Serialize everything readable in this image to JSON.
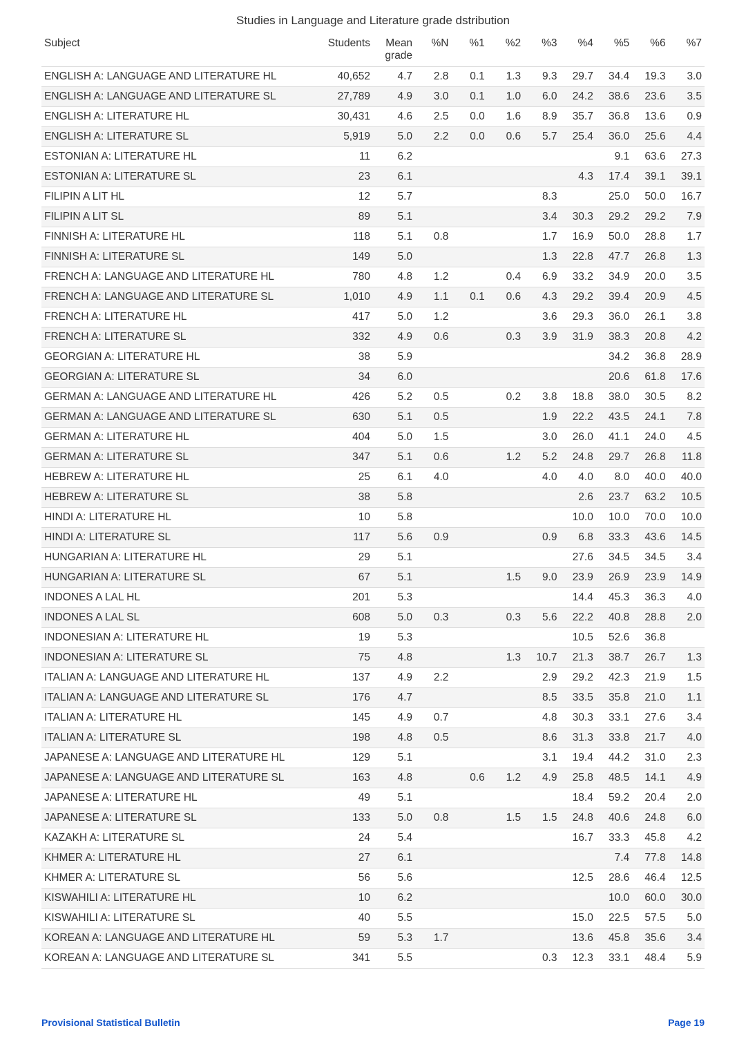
{
  "title": "Studies in Language and Literature grade dstribution",
  "columns": [
    "Subject",
    "Students",
    "Mean grade",
    "%N",
    "%1",
    "%2",
    "%3",
    "%4",
    "%5",
    "%6",
    "%7"
  ],
  "header_bg": "#ffffff",
  "row_alt_bg": "#f4f4f4",
  "border_color": "#dadada",
  "text_color": "#333333",
  "font_size_pt": 11.5,
  "footer": {
    "left": "Provisional Statistical Bulletin",
    "right": "Page 19",
    "color": "#1155cc"
  },
  "rows": [
    {
      "subject": "ENGLISH A: LANGUAGE AND LITERATURE HL",
      "students": "40,652",
      "mean": "4.7",
      "pN": "2.8",
      "p1": "0.1",
      "p2": "1.3",
      "p3": "9.3",
      "p4": "29.7",
      "p5": "34.4",
      "p6": "19.3",
      "p7": "3.0"
    },
    {
      "subject": "ENGLISH A: LANGUAGE AND LITERATURE SL",
      "students": "27,789",
      "mean": "4.9",
      "pN": "3.0",
      "p1": "0.1",
      "p2": "1.0",
      "p3": "6.0",
      "p4": "24.2",
      "p5": "38.6",
      "p6": "23.6",
      "p7": "3.5"
    },
    {
      "subject": "ENGLISH A: LITERATURE HL",
      "students": "30,431",
      "mean": "4.6",
      "pN": "2.5",
      "p1": "0.0",
      "p2": "1.6",
      "p3": "8.9",
      "p4": "35.7",
      "p5": "36.8",
      "p6": "13.6",
      "p7": "0.9"
    },
    {
      "subject": "ENGLISH A: LITERATURE SL",
      "students": "5,919",
      "mean": "5.0",
      "pN": "2.2",
      "p1": "0.0",
      "p2": "0.6",
      "p3": "5.7",
      "p4": "25.4",
      "p5": "36.0",
      "p6": "25.6",
      "p7": "4.4"
    },
    {
      "subject": "ESTONIAN A: LITERATURE HL",
      "students": "11",
      "mean": "6.2",
      "pN": "",
      "p1": "",
      "p2": "",
      "p3": "",
      "p4": "",
      "p5": "9.1",
      "p6": "63.6",
      "p7": "27.3"
    },
    {
      "subject": "ESTONIAN A: LITERATURE SL",
      "students": "23",
      "mean": "6.1",
      "pN": "",
      "p1": "",
      "p2": "",
      "p3": "",
      "p4": "4.3",
      "p5": "17.4",
      "p6": "39.1",
      "p7": "39.1"
    },
    {
      "subject": "FILIPIN A LIT HL",
      "students": "12",
      "mean": "5.7",
      "pN": "",
      "p1": "",
      "p2": "",
      "p3": "8.3",
      "p4": "",
      "p5": "25.0",
      "p6": "50.0",
      "p7": "16.7"
    },
    {
      "subject": "FILIPIN A LIT SL",
      "students": "89",
      "mean": "5.1",
      "pN": "",
      "p1": "",
      "p2": "",
      "p3": "3.4",
      "p4": "30.3",
      "p5": "29.2",
      "p6": "29.2",
      "p7": "7.9"
    },
    {
      "subject": "FINNISH A: LITERATURE HL",
      "students": "118",
      "mean": "5.1",
      "pN": "0.8",
      "p1": "",
      "p2": "",
      "p3": "1.7",
      "p4": "16.9",
      "p5": "50.0",
      "p6": "28.8",
      "p7": "1.7"
    },
    {
      "subject": "FINNISH A: LITERATURE SL",
      "students": "149",
      "mean": "5.0",
      "pN": "",
      "p1": "",
      "p2": "",
      "p3": "1.3",
      "p4": "22.8",
      "p5": "47.7",
      "p6": "26.8",
      "p7": "1.3"
    },
    {
      "subject": "FRENCH A: LANGUAGE AND LITERATURE HL",
      "students": "780",
      "mean": "4.8",
      "pN": "1.2",
      "p1": "",
      "p2": "0.4",
      "p3": "6.9",
      "p4": "33.2",
      "p5": "34.9",
      "p6": "20.0",
      "p7": "3.5"
    },
    {
      "subject": "FRENCH A: LANGUAGE AND LITERATURE SL",
      "students": "1,010",
      "mean": "4.9",
      "pN": "1.1",
      "p1": "0.1",
      "p2": "0.6",
      "p3": "4.3",
      "p4": "29.2",
      "p5": "39.4",
      "p6": "20.9",
      "p7": "4.5"
    },
    {
      "subject": "FRENCH A: LITERATURE HL",
      "students": "417",
      "mean": "5.0",
      "pN": "1.2",
      "p1": "",
      "p2": "",
      "p3": "3.6",
      "p4": "29.3",
      "p5": "36.0",
      "p6": "26.1",
      "p7": "3.8"
    },
    {
      "subject": "FRENCH A: LITERATURE SL",
      "students": "332",
      "mean": "4.9",
      "pN": "0.6",
      "p1": "",
      "p2": "0.3",
      "p3": "3.9",
      "p4": "31.9",
      "p5": "38.3",
      "p6": "20.8",
      "p7": "4.2"
    },
    {
      "subject": "GEORGIAN A: LITERATURE HL",
      "students": "38",
      "mean": "5.9",
      "pN": "",
      "p1": "",
      "p2": "",
      "p3": "",
      "p4": "",
      "p5": "34.2",
      "p6": "36.8",
      "p7": "28.9"
    },
    {
      "subject": "GEORGIAN A: LITERATURE SL",
      "students": "34",
      "mean": "6.0",
      "pN": "",
      "p1": "",
      "p2": "",
      "p3": "",
      "p4": "",
      "p5": "20.6",
      "p6": "61.8",
      "p7": "17.6"
    },
    {
      "subject": "GERMAN A: LANGUAGE AND LITERATURE HL",
      "students": "426",
      "mean": "5.2",
      "pN": "0.5",
      "p1": "",
      "p2": "0.2",
      "p3": "3.8",
      "p4": "18.8",
      "p5": "38.0",
      "p6": "30.5",
      "p7": "8.2"
    },
    {
      "subject": "GERMAN A: LANGUAGE AND LITERATURE SL",
      "students": "630",
      "mean": "5.1",
      "pN": "0.5",
      "p1": "",
      "p2": "",
      "p3": "1.9",
      "p4": "22.2",
      "p5": "43.5",
      "p6": "24.1",
      "p7": "7.8"
    },
    {
      "subject": "GERMAN A: LITERATURE HL",
      "students": "404",
      "mean": "5.0",
      "pN": "1.5",
      "p1": "",
      "p2": "",
      "p3": "3.0",
      "p4": "26.0",
      "p5": "41.1",
      "p6": "24.0",
      "p7": "4.5"
    },
    {
      "subject": "GERMAN A: LITERATURE SL",
      "students": "347",
      "mean": "5.1",
      "pN": "0.6",
      "p1": "",
      "p2": "1.2",
      "p3": "5.2",
      "p4": "24.8",
      "p5": "29.7",
      "p6": "26.8",
      "p7": "11.8"
    },
    {
      "subject": "HEBREW A: LITERATURE HL",
      "students": "25",
      "mean": "6.1",
      "pN": "4.0",
      "p1": "",
      "p2": "",
      "p3": "4.0",
      "p4": "4.0",
      "p5": "8.0",
      "p6": "40.0",
      "p7": "40.0"
    },
    {
      "subject": "HEBREW A: LITERATURE SL",
      "students": "38",
      "mean": "5.8",
      "pN": "",
      "p1": "",
      "p2": "",
      "p3": "",
      "p4": "2.6",
      "p5": "23.7",
      "p6": "63.2",
      "p7": "10.5"
    },
    {
      "subject": "HINDI A: LITERATURE HL",
      "students": "10",
      "mean": "5.8",
      "pN": "",
      "p1": "",
      "p2": "",
      "p3": "",
      "p4": "10.0",
      "p5": "10.0",
      "p6": "70.0",
      "p7": "10.0"
    },
    {
      "subject": "HINDI A: LITERATURE SL",
      "students": "117",
      "mean": "5.6",
      "pN": "0.9",
      "p1": "",
      "p2": "",
      "p3": "0.9",
      "p4": "6.8",
      "p5": "33.3",
      "p6": "43.6",
      "p7": "14.5"
    },
    {
      "subject": "HUNGARIAN A: LITERATURE HL",
      "students": "29",
      "mean": "5.1",
      "pN": "",
      "p1": "",
      "p2": "",
      "p3": "",
      "p4": "27.6",
      "p5": "34.5",
      "p6": "34.5",
      "p7": "3.4"
    },
    {
      "subject": "HUNGARIAN A: LITERATURE SL",
      "students": "67",
      "mean": "5.1",
      "pN": "",
      "p1": "",
      "p2": "1.5",
      "p3": "9.0",
      "p4": "23.9",
      "p5": "26.9",
      "p6": "23.9",
      "p7": "14.9"
    },
    {
      "subject": "INDONES A LAL HL",
      "students": "201",
      "mean": "5.3",
      "pN": "",
      "p1": "",
      "p2": "",
      "p3": "",
      "p4": "14.4",
      "p5": "45.3",
      "p6": "36.3",
      "p7": "4.0"
    },
    {
      "subject": "INDONES A LAL SL",
      "students": "608",
      "mean": "5.0",
      "pN": "0.3",
      "p1": "",
      "p2": "0.3",
      "p3": "5.6",
      "p4": "22.2",
      "p5": "40.8",
      "p6": "28.8",
      "p7": "2.0"
    },
    {
      "subject": "INDONESIAN A: LITERATURE HL",
      "students": "19",
      "mean": "5.3",
      "pN": "",
      "p1": "",
      "p2": "",
      "p3": "",
      "p4": "10.5",
      "p5": "52.6",
      "p6": "36.8",
      "p7": ""
    },
    {
      "subject": "INDONESIAN A: LITERATURE SL",
      "students": "75",
      "mean": "4.8",
      "pN": "",
      "p1": "",
      "p2": "1.3",
      "p3": "10.7",
      "p4": "21.3",
      "p5": "38.7",
      "p6": "26.7",
      "p7": "1.3"
    },
    {
      "subject": "ITALIAN A: LANGUAGE AND LITERATURE HL",
      "students": "137",
      "mean": "4.9",
      "pN": "2.2",
      "p1": "",
      "p2": "",
      "p3": "2.9",
      "p4": "29.2",
      "p5": "42.3",
      "p6": "21.9",
      "p7": "1.5"
    },
    {
      "subject": "ITALIAN A: LANGUAGE AND LITERATURE SL",
      "students": "176",
      "mean": "4.7",
      "pN": "",
      "p1": "",
      "p2": "",
      "p3": "8.5",
      "p4": "33.5",
      "p5": "35.8",
      "p6": "21.0",
      "p7": "1.1"
    },
    {
      "subject": "ITALIAN A: LITERATURE HL",
      "students": "145",
      "mean": "4.9",
      "pN": "0.7",
      "p1": "",
      "p2": "",
      "p3": "4.8",
      "p4": "30.3",
      "p5": "33.1",
      "p6": "27.6",
      "p7": "3.4"
    },
    {
      "subject": "ITALIAN A: LITERATURE SL",
      "students": "198",
      "mean": "4.8",
      "pN": "0.5",
      "p1": "",
      "p2": "",
      "p3": "8.6",
      "p4": "31.3",
      "p5": "33.8",
      "p6": "21.7",
      "p7": "4.0"
    },
    {
      "subject": "JAPANESE A: LANGUAGE AND LITERATURE HL",
      "students": "129",
      "mean": "5.1",
      "pN": "",
      "p1": "",
      "p2": "",
      "p3": "3.1",
      "p4": "19.4",
      "p5": "44.2",
      "p6": "31.0",
      "p7": "2.3"
    },
    {
      "subject": "JAPANESE A: LANGUAGE AND LITERATURE SL",
      "students": "163",
      "mean": "4.8",
      "pN": "",
      "p1": "0.6",
      "p2": "1.2",
      "p3": "4.9",
      "p4": "25.8",
      "p5": "48.5",
      "p6": "14.1",
      "p7": "4.9"
    },
    {
      "subject": "JAPANESE A: LITERATURE HL",
      "students": "49",
      "mean": "5.1",
      "pN": "",
      "p1": "",
      "p2": "",
      "p3": "",
      "p4": "18.4",
      "p5": "59.2",
      "p6": "20.4",
      "p7": "2.0"
    },
    {
      "subject": "JAPANESE A: LITERATURE SL",
      "students": "133",
      "mean": "5.0",
      "pN": "0.8",
      "p1": "",
      "p2": "1.5",
      "p3": "1.5",
      "p4": "24.8",
      "p5": "40.6",
      "p6": "24.8",
      "p7": "6.0"
    },
    {
      "subject": "KAZAKH A: LITERATURE SL",
      "students": "24",
      "mean": "5.4",
      "pN": "",
      "p1": "",
      "p2": "",
      "p3": "",
      "p4": "16.7",
      "p5": "33.3",
      "p6": "45.8",
      "p7": "4.2"
    },
    {
      "subject": "KHMER A: LITERATURE HL",
      "students": "27",
      "mean": "6.1",
      "pN": "",
      "p1": "",
      "p2": "",
      "p3": "",
      "p4": "",
      "p5": "7.4",
      "p6": "77.8",
      "p7": "14.8"
    },
    {
      "subject": "KHMER A: LITERATURE SL",
      "students": "56",
      "mean": "5.6",
      "pN": "",
      "p1": "",
      "p2": "",
      "p3": "",
      "p4": "12.5",
      "p5": "28.6",
      "p6": "46.4",
      "p7": "12.5"
    },
    {
      "subject": "KISWAHILI A: LITERATURE HL",
      "students": "10",
      "mean": "6.2",
      "pN": "",
      "p1": "",
      "p2": "",
      "p3": "",
      "p4": "",
      "p5": "10.0",
      "p6": "60.0",
      "p7": "30.0"
    },
    {
      "subject": "KISWAHILI A: LITERATURE SL",
      "students": "40",
      "mean": "5.5",
      "pN": "",
      "p1": "",
      "p2": "",
      "p3": "",
      "p4": "15.0",
      "p5": "22.5",
      "p6": "57.5",
      "p7": "5.0"
    },
    {
      "subject": "KOREAN A: LANGUAGE AND LITERATURE HL",
      "students": "59",
      "mean": "5.3",
      "pN": "1.7",
      "p1": "",
      "p2": "",
      "p3": "",
      "p4": "13.6",
      "p5": "45.8",
      "p6": "35.6",
      "p7": "3.4"
    },
    {
      "subject": "KOREAN A: LANGUAGE AND LITERATURE SL",
      "students": "341",
      "mean": "5.5",
      "pN": "",
      "p1": "",
      "p2": "",
      "p3": "0.3",
      "p4": "12.3",
      "p5": "33.1",
      "p6": "48.4",
      "p7": "5.9"
    }
  ]
}
